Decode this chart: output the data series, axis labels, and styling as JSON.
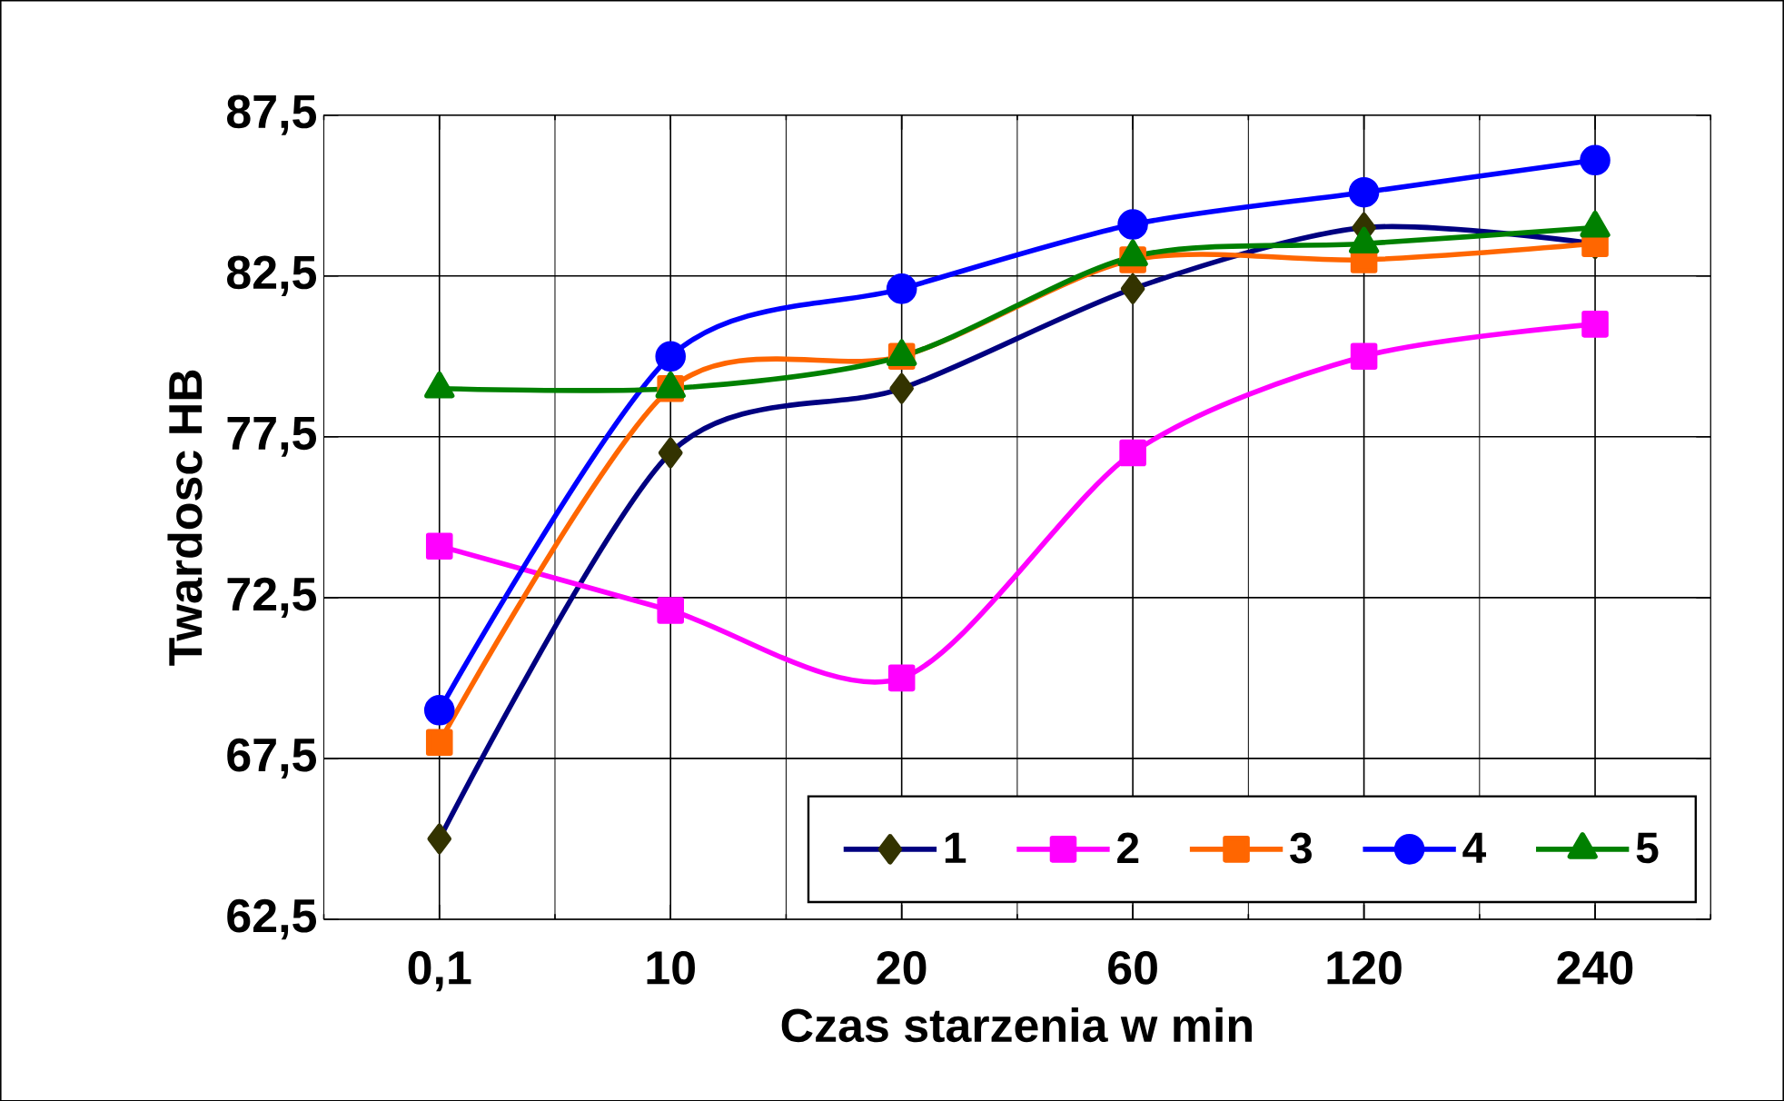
{
  "chart_data": {
    "type": "line",
    "xlabel": "Czas starzenia  w min",
    "ylabel": "Twardosc HB",
    "categories": [
      "0,1",
      "10",
      "20",
      "60",
      "120",
      "240"
    ],
    "ylim": [
      62.5,
      87.5
    ],
    "yticks": [
      {
        "value": 62.5,
        "label": "62,5"
      },
      {
        "value": 67.5,
        "label": "67,5"
      },
      {
        "value": 72.5,
        "label": "72,5"
      },
      {
        "value": 77.5,
        "label": "77,5"
      },
      {
        "value": 82.5,
        "label": "82,5"
      },
      {
        "value": 87.5,
        "label": "87,5"
      }
    ],
    "grid": true,
    "legend": "bottom right",
    "line_style": "solid",
    "series": [
      {
        "name": "1",
        "color": "#000080",
        "marker": "diamond",
        "values": [
          65,
          77,
          79,
          82.1,
          84,
          83.5
        ]
      },
      {
        "name": "2",
        "color": "#ff00ff",
        "marker": "square",
        "values": [
          74.1,
          72.1,
          70,
          77,
          80,
          81
        ]
      },
      {
        "name": "3",
        "color": "#ff6600",
        "marker": "square",
        "values": [
          68,
          79,
          80,
          83,
          83,
          83.5
        ]
      },
      {
        "name": "4",
        "color": "#0000ff",
        "marker": "circle",
        "values": [
          69,
          80,
          82.1,
          84.1,
          85.1,
          86.1
        ]
      },
      {
        "name": "5",
        "color": "#008000",
        "marker": "triangle",
        "values": [
          79,
          79,
          80,
          83.1,
          83.5,
          84
        ]
      }
    ]
  }
}
